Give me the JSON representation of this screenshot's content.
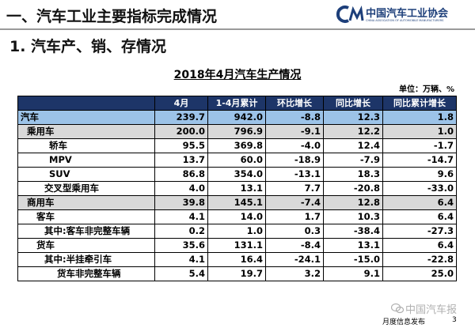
{
  "header": {
    "title": "一、汽车工业主要指标完成情况",
    "logo": "中国汽车工业协会",
    "logo_en": "CHINA ASSOCIATION OF AUTOMOBILE MANUFACTURERS"
  },
  "subtitle": "1. 汽车产、销、存情况",
  "table": {
    "title": "2018年4月汽车生产情况",
    "unit": "单位：万辆、%",
    "columns": [
      "4月",
      "1-4月累计",
      "环比增长",
      "同比增长",
      "同比累计增长"
    ],
    "rows": [
      [
        "汽车",
        "239.7",
        "942.0",
        "-8.8",
        "12.3",
        "1.8"
      ],
      [
        "乘用车",
        "200.0",
        "796.9",
        "-9.1",
        "12.2",
        "1.0"
      ],
      [
        "轿车",
        "95.5",
        "369.8",
        "-4.0",
        "12.4",
        "-1.7"
      ],
      [
        "MPV",
        "13.7",
        "60.0",
        "-18.9",
        "-7.9",
        "-14.7"
      ],
      [
        "SUV",
        "86.8",
        "354.0",
        "-13.1",
        "18.3",
        "9.6"
      ],
      [
        "交叉型乘用车",
        "4.0",
        "13.1",
        "7.7",
        "-20.8",
        "-33.0"
      ],
      [
        "商用车",
        "39.8",
        "145.1",
        "-7.4",
        "12.8",
        "6.4"
      ],
      [
        "客车",
        "4.1",
        "14.0",
        "1.7",
        "10.3",
        "6.4"
      ],
      [
        "其中:客车非完整车辆",
        "0.2",
        "1.0",
        "0.3",
        "-38.4",
        "-27.3"
      ],
      [
        "货车",
        "35.6",
        "131.1",
        "-8.4",
        "13.1",
        "6.4"
      ],
      [
        "其中:半挂牵引车",
        "4.1",
        "16.4",
        "-24.1",
        "-15.0",
        "-22.8"
      ],
      [
        "货车非完整车辆",
        "5.4",
        "19.7",
        "3.2",
        "9.1",
        "25.0"
      ]
    ]
  },
  "footer": {
    "watermark": "中国汽车报",
    "label": "月度信息发布",
    "page": "3"
  }
}
